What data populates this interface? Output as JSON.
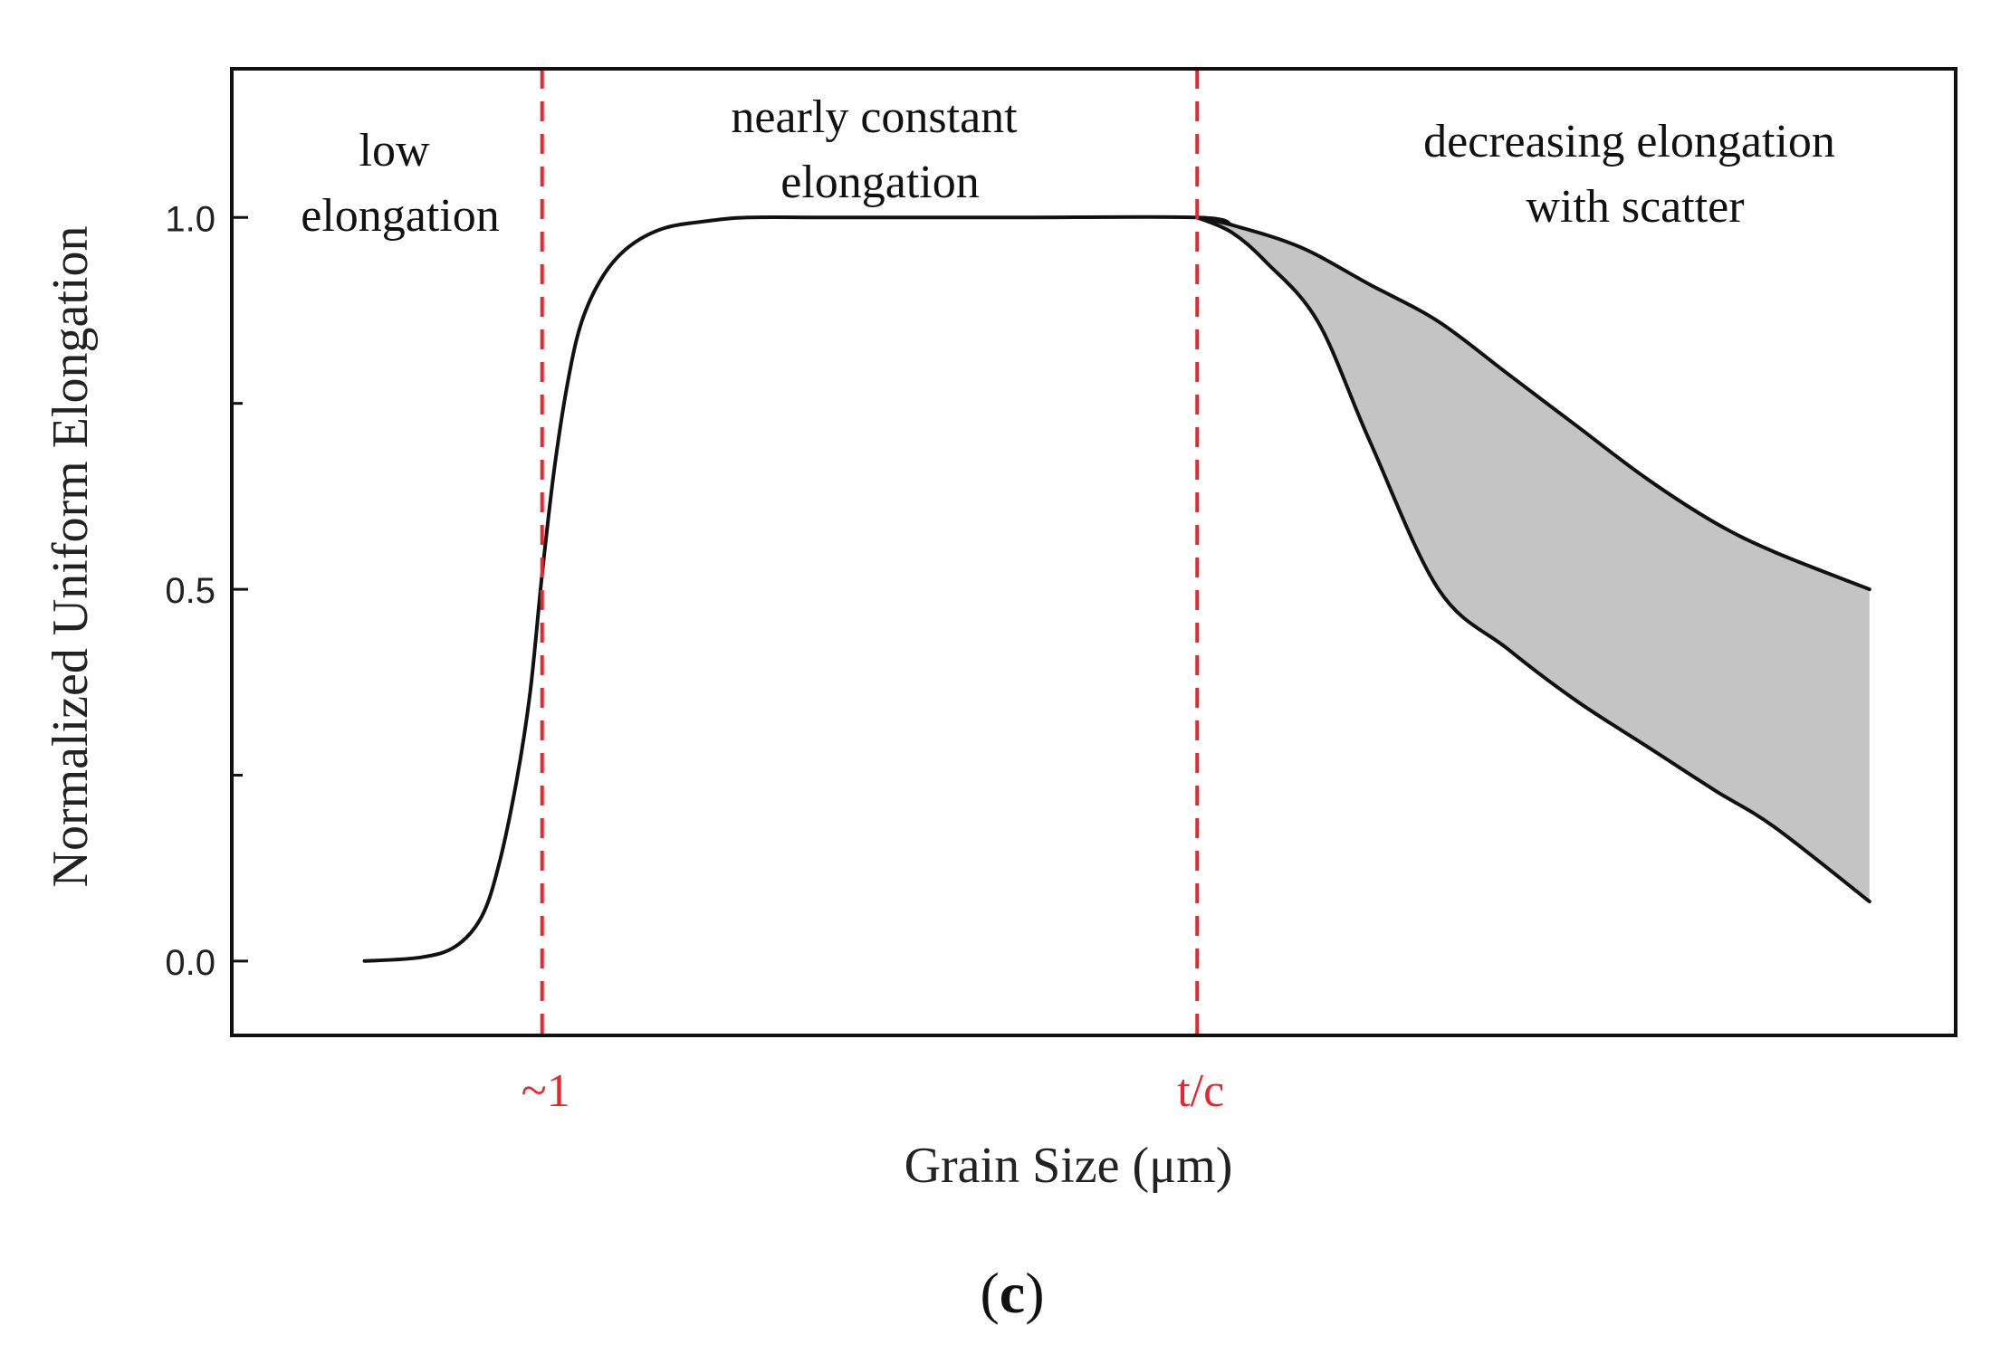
{
  "chart_data": {
    "type": "line",
    "title": "",
    "xlabel": "Grain Size (μm)",
    "ylabel": "Normalized Uniform Elongation",
    "panel_label": "c",
    "xlim": [
      0,
      100
    ],
    "ylim": [
      -0.1,
      1.2
    ],
    "yticks": [
      0.0,
      0.5,
      1.0
    ],
    "ytick_labels": [
      "0.0",
      "0.5",
      "1.0"
    ],
    "yminor_ticks": [
      0.25,
      0.75
    ],
    "grid": false,
    "colors": {
      "curve": "#111111",
      "marker_lines": "#e8262b",
      "band_fill": "#c4c4c4",
      "axis": "#111111"
    },
    "vertical_markers": [
      {
        "x": 18,
        "label": "~1"
      },
      {
        "x": 56,
        "label": "t/c"
      }
    ],
    "series": [
      {
        "name": "elongation curve",
        "x": [
          7.7,
          11,
          13,
          14.5,
          15.5,
          16.5,
          17.3,
          18,
          18.7,
          19.5,
          20.3,
          21.5,
          23,
          25,
          27.5,
          30,
          35,
          45,
          56,
          58
        ],
        "y": [
          0.0,
          0.005,
          0.02,
          0.06,
          0.13,
          0.24,
          0.36,
          0.52,
          0.66,
          0.78,
          0.86,
          0.92,
          0.96,
          0.985,
          0.995,
          1.0,
          1.0,
          1.0,
          1.0,
          0.99
        ]
      },
      {
        "name": "scatter upper bound",
        "x": [
          56,
          58,
          62,
          66,
          70,
          74,
          78,
          82,
          86,
          89.5,
          95
        ],
        "y": [
          1.0,
          0.99,
          0.96,
          0.91,
          0.86,
          0.79,
          0.72,
          0.65,
          0.59,
          0.55,
          0.5
        ]
      },
      {
        "name": "scatter lower bound",
        "x": [
          56,
          58,
          60,
          63,
          66,
          70,
          74,
          78,
          82,
          86,
          89.5,
          95
        ],
        "y": [
          1.0,
          0.98,
          0.94,
          0.86,
          0.7,
          0.5,
          0.42,
          0.35,
          0.29,
          0.23,
          0.18,
          0.08
        ]
      }
    ],
    "annotations": [
      {
        "id": "low",
        "lines": [
          "low",
          "elongation"
        ],
        "x": 9.6,
        "y": 1.08
      },
      {
        "id": "constant",
        "lines": [
          "nearly constant",
          "elongation"
        ],
        "x": 37.6,
        "y": 1.11
      },
      {
        "id": "decreasing",
        "lines": [
          "decreasing elongation",
          "with scatter"
        ],
        "x": 81.6,
        "y": 1.08
      }
    ]
  }
}
